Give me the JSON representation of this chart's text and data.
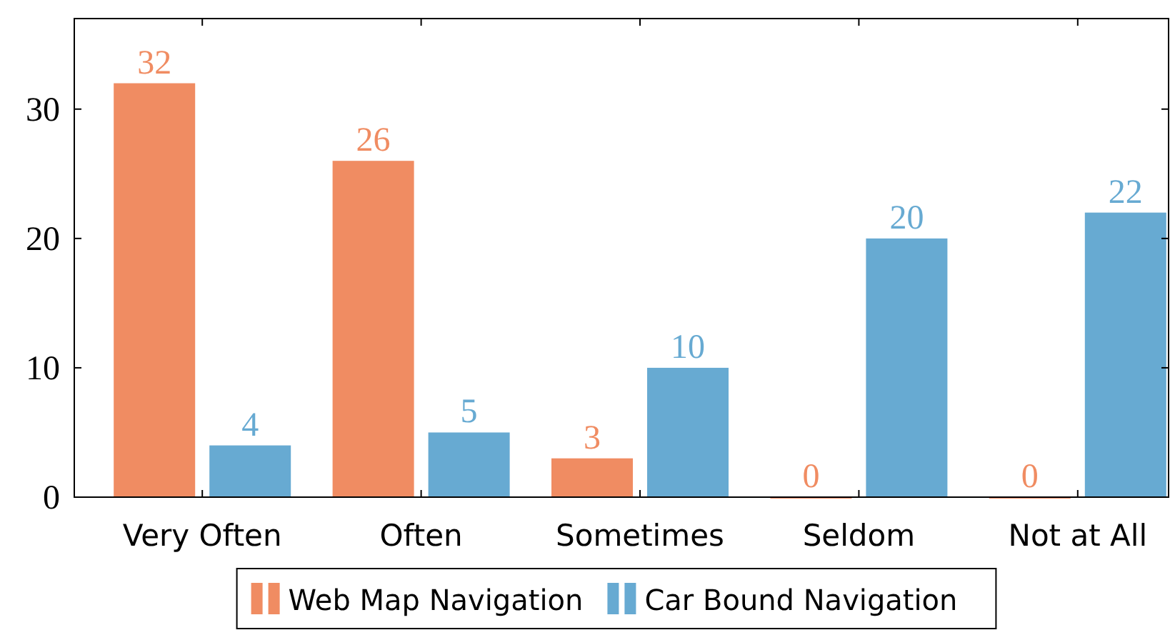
{
  "chart_data": {
    "type": "bar",
    "categories": [
      "Very Often",
      "Often",
      "Sometimes",
      "Seldom",
      "Not at All"
    ],
    "series": [
      {
        "name": "Web Map Navigation",
        "color": "#f08c62",
        "values": [
          32,
          26,
          3,
          0,
          0
        ]
      },
      {
        "name": "Car Bound Navigation",
        "color": "#67aad2",
        "values": [
          4,
          5,
          10,
          20,
          22
        ]
      }
    ],
    "ylim": [
      0,
      37
    ],
    "yticks": [
      0,
      10,
      20,
      30
    ],
    "data_labels": true,
    "legend": "bottom",
    "grid": false
  }
}
